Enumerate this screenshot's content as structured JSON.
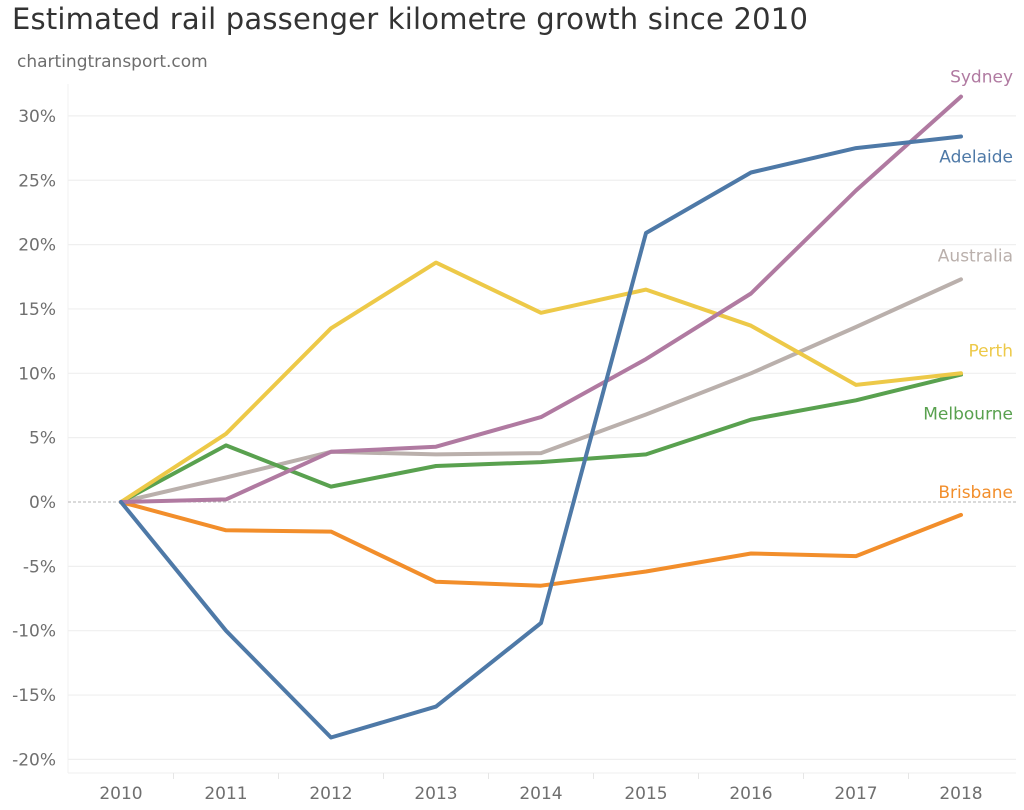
{
  "chart_data": {
    "type": "line",
    "title": "Estimated rail passenger kilometre growth since 2010",
    "subtitle": "chartingtransport.com",
    "xlabel": "",
    "ylabel": "",
    "x": [
      "2010",
      "2011",
      "2012",
      "2013",
      "2014",
      "2015",
      "2016",
      "2017",
      "2018"
    ],
    "ylim": [
      -21,
      32
    ],
    "yticks": [
      30,
      25,
      20,
      15,
      10,
      5,
      0,
      -5,
      -10,
      -15,
      -20
    ],
    "ytick_labels": [
      "30%",
      "25%",
      "20%",
      "15%",
      "10%",
      "5%",
      "0%",
      "-5%",
      "-10%",
      "-15%",
      "-20%"
    ],
    "grid": true,
    "zero_line": "dashed",
    "legend": "direct-labels-right",
    "series": [
      {
        "name": "Sydney",
        "color": "#b07aa1",
        "values": [
          0,
          0.2,
          3.9,
          4.3,
          6.6,
          11.1,
          16.2,
          24.2,
          31.5
        ]
      },
      {
        "name": "Adelaide",
        "color": "#4e79a7",
        "values": [
          0,
          -10.0,
          -18.3,
          -15.9,
          -9.4,
          20.9,
          25.6,
          27.5,
          28.4
        ]
      },
      {
        "name": "Australia",
        "color": "#bab0ac",
        "values": [
          0,
          1.9,
          3.9,
          3.7,
          3.8,
          6.8,
          10.0,
          13.6,
          17.3
        ]
      },
      {
        "name": "Perth",
        "color": "#edc948",
        "values": [
          0,
          5.3,
          13.5,
          18.6,
          14.7,
          16.5,
          13.7,
          9.1,
          10.0
        ]
      },
      {
        "name": "Melbourne",
        "color": "#59a14f",
        "values": [
          0,
          4.4,
          1.2,
          2.8,
          3.1,
          3.7,
          6.4,
          7.9,
          9.9
        ]
      },
      {
        "name": "Brisbane",
        "color": "#f28e2b",
        "values": [
          0,
          -2.2,
          -2.3,
          -6.2,
          -6.5,
          -5.4,
          -4.0,
          -4.2,
          -1.0
        ]
      }
    ]
  }
}
